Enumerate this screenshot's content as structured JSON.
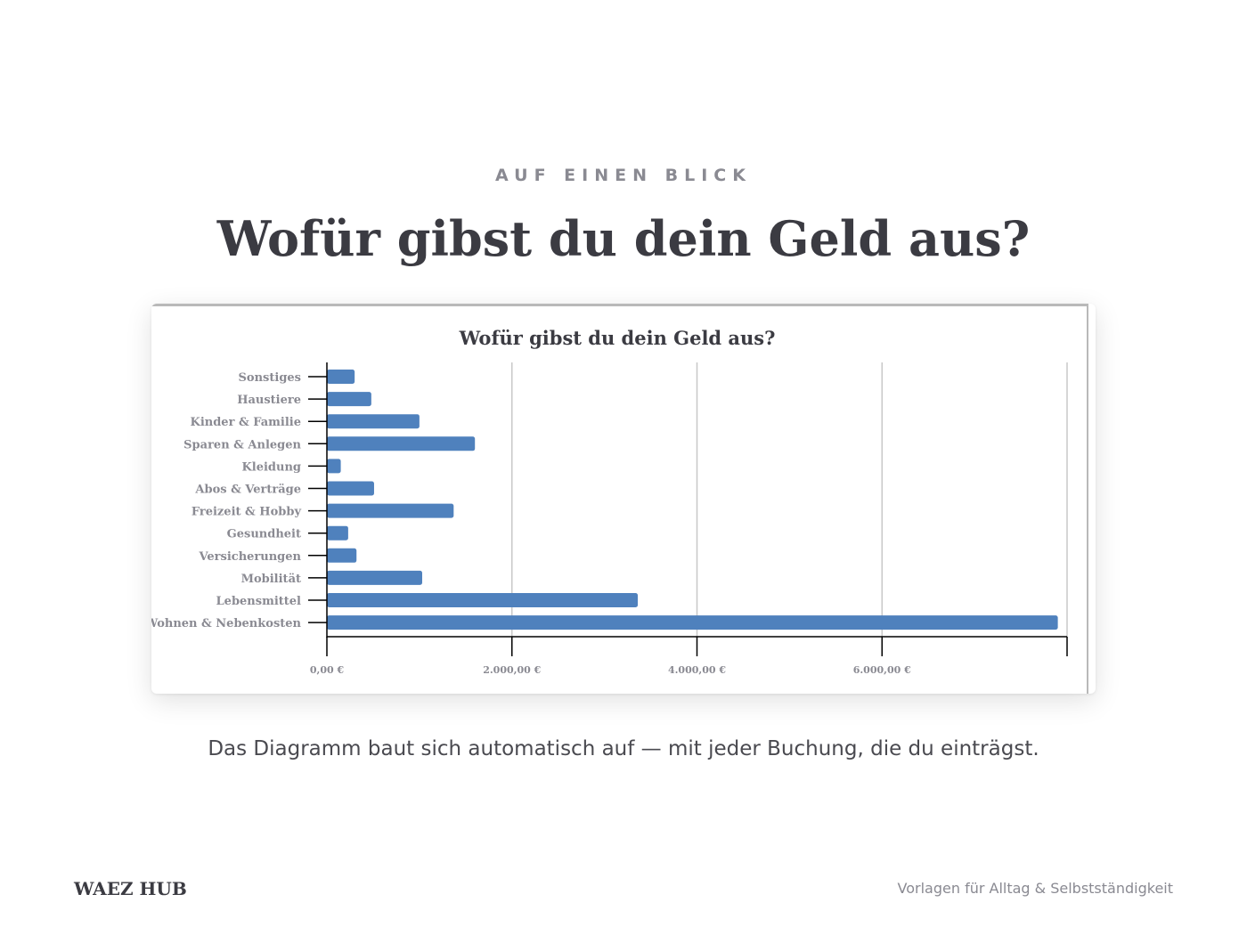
{
  "header": {
    "eyebrow": "AUF EINEN BLICK",
    "title": "Wofür gibst du dein Geld aus?"
  },
  "caption": "Das Diagramm baut sich automatisch auf — mit jeder Buchung, die du einträgst.",
  "footer": {
    "brand": "WAEZ HUB",
    "tagline": "Vorlagen für Alltag & Selbstständigkeit"
  },
  "colors": {
    "bar": "#4f81bd",
    "grid": "#c8c8c8",
    "axis": "#000000",
    "label": "#8a8a92",
    "title": "#3b3b42"
  },
  "chart_data": {
    "type": "bar",
    "orientation": "horizontal",
    "title": "Wofür gibst du dein Geld aus?",
    "xlabel": "",
    "ylabel": "",
    "categories": [
      "Sonstiges",
      "Haustiere",
      "Kinder & Familie",
      "Sparen & Anlegen",
      "Kleidung",
      "Abos & Verträge",
      "Freizeit & Hobby",
      "Gesundheit",
      "Versicherungen",
      "Mobilität",
      "Lebensmittel",
      "Wohnen & Nebenkosten"
    ],
    "values": [
      300,
      480,
      1000,
      1600,
      150,
      510,
      1370,
      230,
      320,
      1030,
      3360,
      7900
    ],
    "xlim": [
      0,
      8000
    ],
    "xticks": [
      0,
      2000,
      4000,
      6000
    ],
    "xtick_labels": [
      "0,00 €",
      "2.000,00 €",
      "4.000,00 €",
      "6.000,00 €"
    ],
    "grid": true,
    "legend": "none"
  }
}
